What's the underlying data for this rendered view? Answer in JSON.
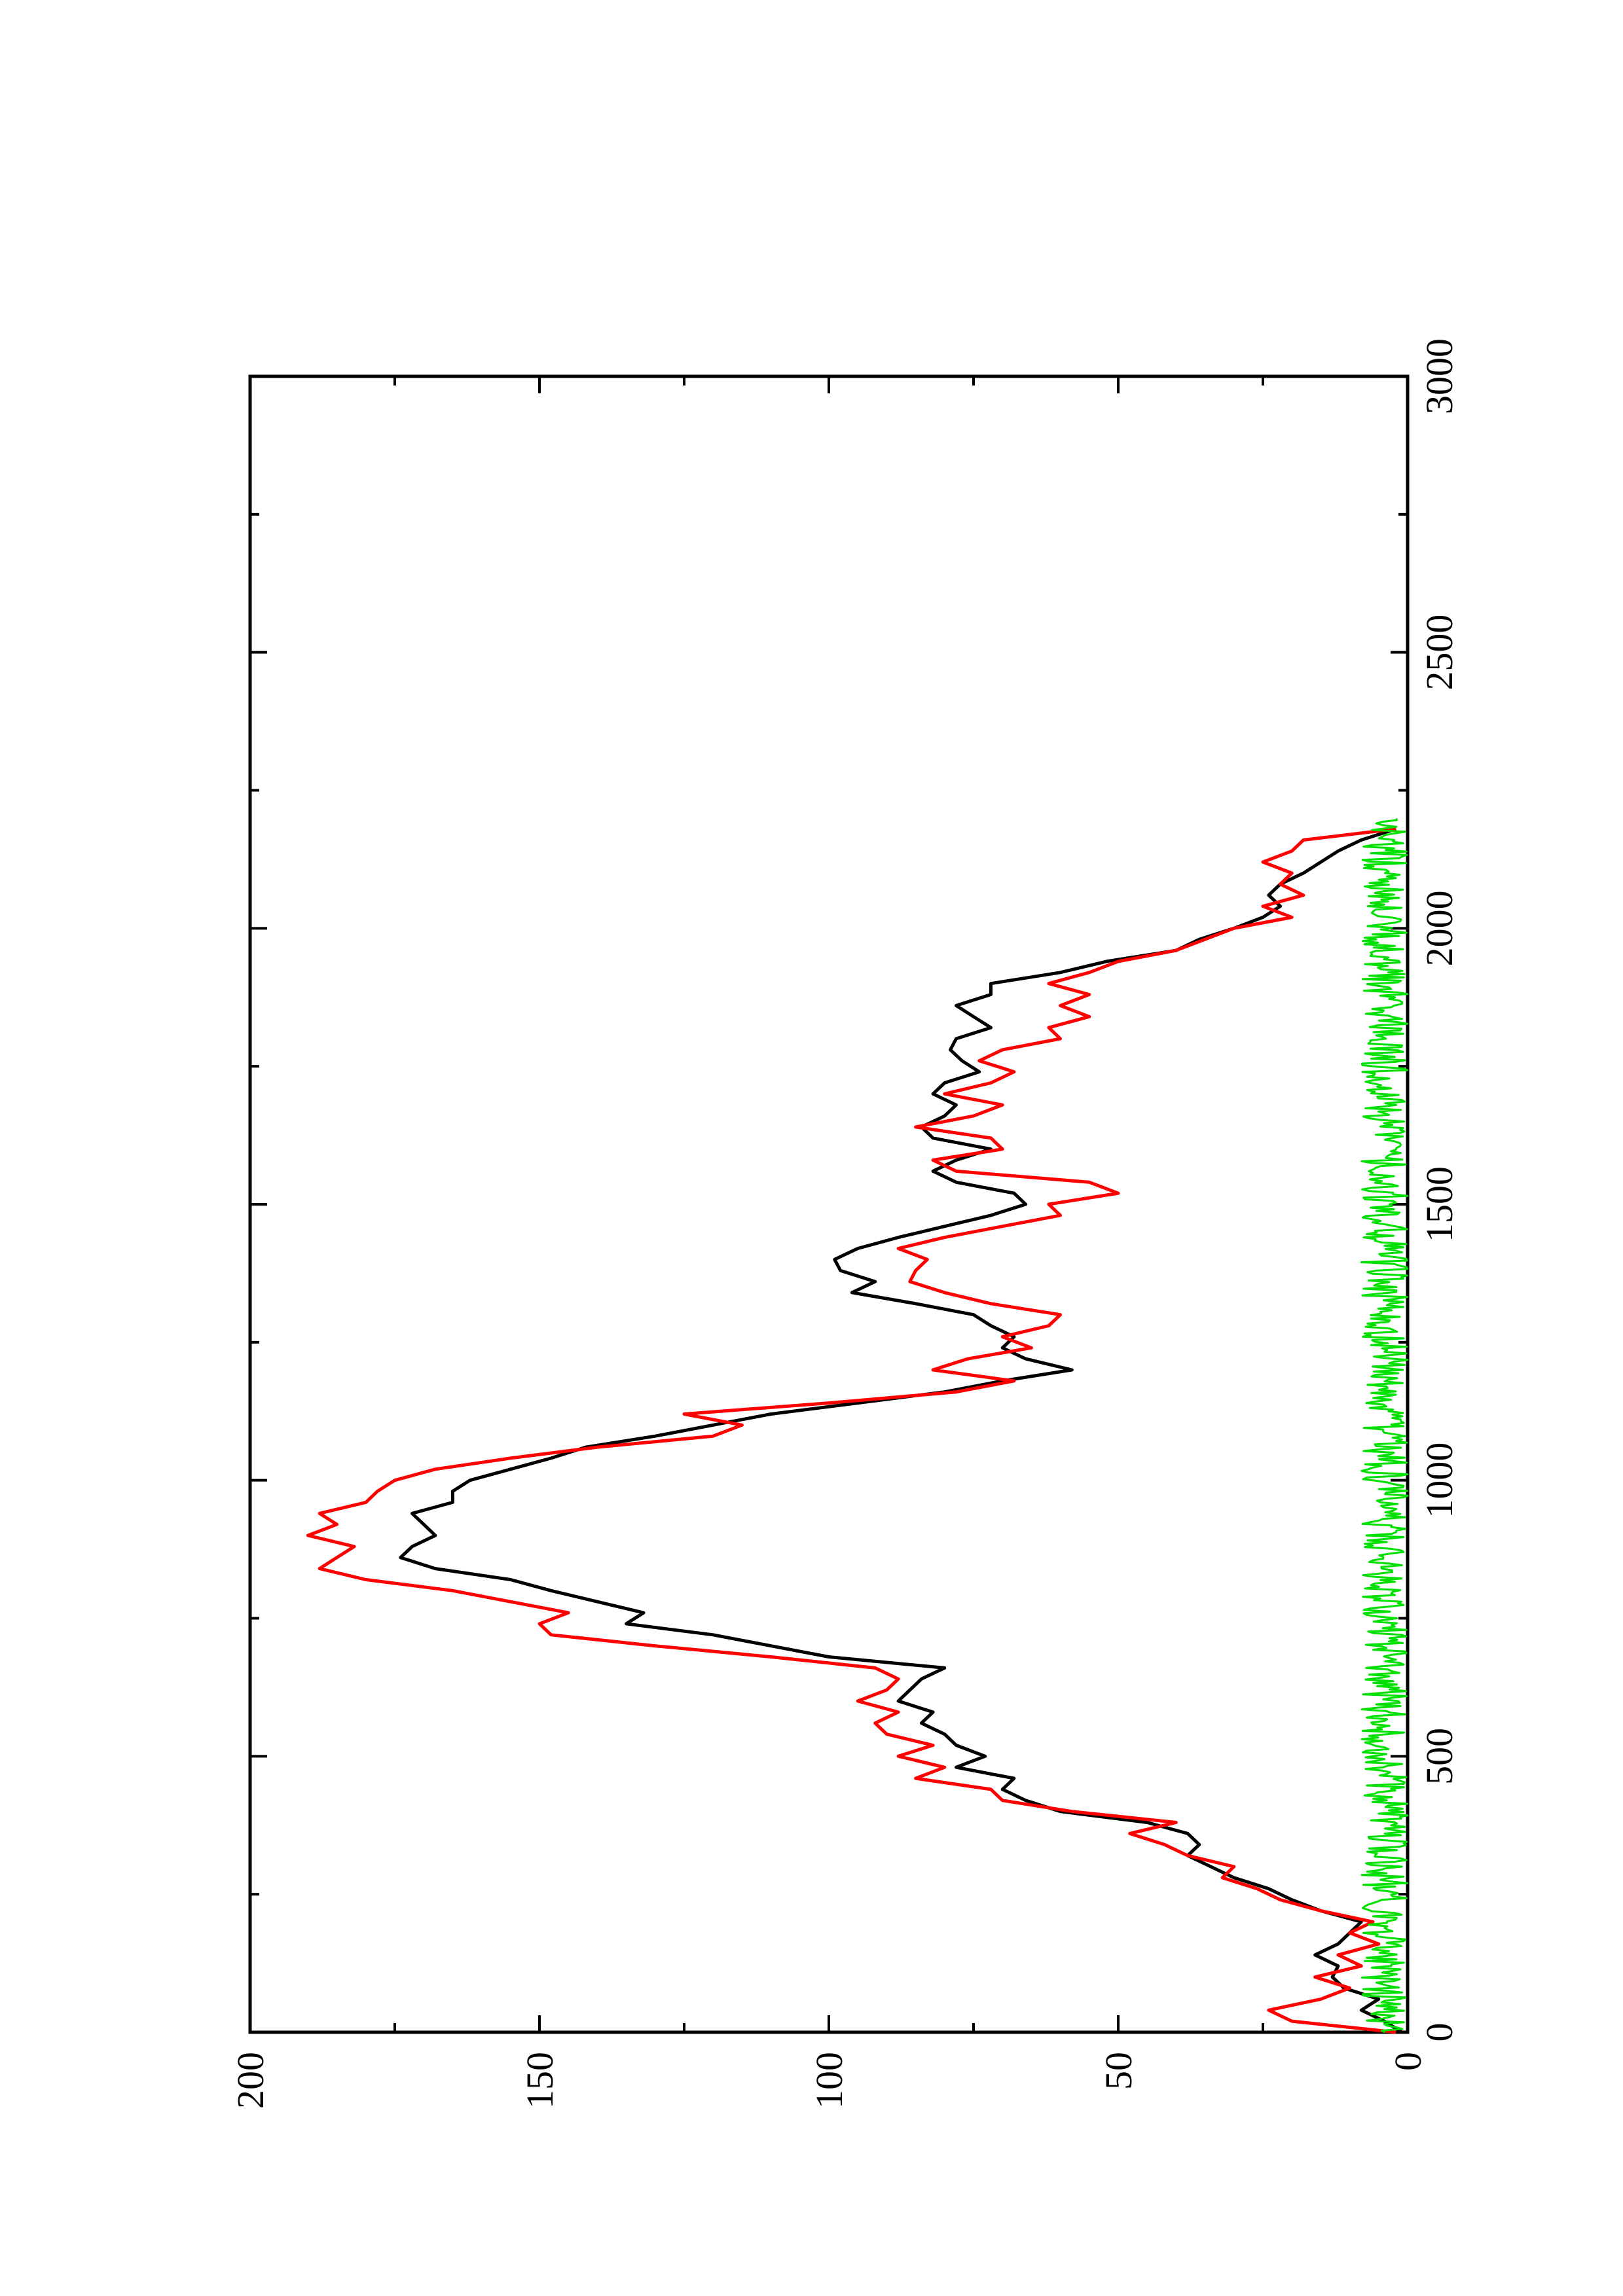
{
  "chart_data": {
    "type": "line",
    "orientation": "rotated-90-ccw",
    "title": "",
    "xlabel": "",
    "ylabel": "",
    "xlim": [
      0,
      3000
    ],
    "ylim": [
      0,
      200
    ],
    "x_ticks": [
      0,
      500,
      1000,
      1500,
      2000,
      2500,
      3000
    ],
    "y_ticks": [
      0,
      50,
      100,
      150,
      200
    ],
    "x_minor_step": 250,
    "y_minor_step": 25,
    "grid": false,
    "legend": "none",
    "series": [
      {
        "color": "#000000",
        "x": [
          0,
          20,
          40,
          60,
          80,
          100,
          120,
          140,
          160,
          180,
          200,
          220,
          240,
          260,
          280,
          300,
          320,
          340,
          360,
          380,
          400,
          420,
          440,
          460,
          480,
          500,
          520,
          540,
          560,
          580,
          600,
          620,
          640,
          660,
          680,
          700,
          720,
          740,
          760,
          780,
          800,
          820,
          840,
          860,
          880,
          900,
          920,
          940,
          960,
          980,
          1000,
          1020,
          1040,
          1060,
          1080,
          1100,
          1120,
          1140,
          1160,
          1180,
          1200,
          1220,
          1240,
          1260,
          1280,
          1300,
          1320,
          1340,
          1360,
          1380,
          1400,
          1420,
          1440,
          1460,
          1480,
          1500,
          1520,
          1540,
          1560,
          1580,
          1600,
          1620,
          1640,
          1660,
          1680,
          1700,
          1720,
          1740,
          1760,
          1780,
          1800,
          1820,
          1840,
          1860,
          1880,
          1900,
          1920,
          1940,
          1960,
          1980,
          2000,
          2020,
          2040,
          2060,
          2080,
          2100,
          2120,
          2140,
          2160,
          2180
        ],
        "values": [
          1,
          4,
          8,
          5,
          11,
          13,
          12,
          16,
          12,
          10,
          8,
          15,
          20,
          24,
          30,
          34,
          38,
          36,
          38,
          45,
          60,
          66,
          70,
          68,
          78,
          73,
          78,
          80,
          84,
          82,
          88,
          86,
          84,
          80,
          100,
          110,
          120,
          135,
          132,
          140,
          148,
          155,
          168,
          174,
          172,
          168,
          170,
          172,
          165,
          165,
          162,
          155,
          148,
          142,
          130,
          120,
          110,
          95,
          80,
          70,
          58,
          66,
          70,
          68,
          72,
          75,
          85,
          96,
          92,
          98,
          99,
          95,
          88,
          80,
          72,
          66,
          68,
          78,
          82,
          78,
          72,
          82,
          84,
          80,
          78,
          82,
          80,
          74,
          77,
          79,
          78,
          72,
          75,
          78,
          72,
          72,
          60,
          52,
          40,
          36,
          30,
          25,
          22,
          24,
          22,
          18,
          15,
          12,
          8,
          2
        ]
      },
      {
        "color": "#ff0000",
        "x": [
          0,
          20,
          40,
          60,
          80,
          100,
          120,
          140,
          160,
          180,
          200,
          220,
          240,
          260,
          280,
          300,
          320,
          340,
          360,
          380,
          400,
          420,
          440,
          460,
          480,
          500,
          520,
          540,
          560,
          580,
          600,
          620,
          640,
          660,
          680,
          700,
          720,
          740,
          760,
          780,
          800,
          820,
          840,
          860,
          880,
          900,
          920,
          940,
          960,
          980,
          1000,
          1020,
          1040,
          1060,
          1080,
          1100,
          1120,
          1140,
          1160,
          1180,
          1200,
          1220,
          1240,
          1260,
          1280,
          1300,
          1320,
          1340,
          1360,
          1380,
          1400,
          1420,
          1440,
          1460,
          1480,
          1500,
          1520,
          1540,
          1560,
          1580,
          1600,
          1620,
          1640,
          1660,
          1680,
          1700,
          1720,
          1740,
          1760,
          1780,
          1800,
          1820,
          1840,
          1860,
          1880,
          1900,
          1920,
          1940,
          1960,
          1980,
          2000,
          2020,
          2040,
          2060,
          2080,
          2100,
          2120,
          2140,
          2160,
          2180
        ],
        "values": [
          2,
          20,
          24,
          15,
          10,
          16,
          8,
          12,
          5,
          10,
          6,
          15,
          22,
          26,
          32,
          30,
          38,
          42,
          48,
          40,
          58,
          70,
          72,
          85,
          80,
          88,
          82,
          90,
          92,
          88,
          95,
          90,
          88,
          92,
          110,
          130,
          148,
          150,
          145,
          155,
          165,
          180,
          188,
          185,
          182,
          190,
          185,
          188,
          180,
          178,
          175,
          168,
          155,
          140,
          120,
          115,
          125,
          100,
          78,
          68,
          82,
          76,
          65,
          70,
          62,
          60,
          72,
          80,
          86,
          85,
          83,
          88,
          80,
          70,
          60,
          62,
          50,
          55,
          78,
          82,
          70,
          72,
          85,
          75,
          70,
          80,
          72,
          68,
          74,
          70,
          60,
          62,
          55,
          60,
          55,
          62,
          55,
          50,
          40,
          35,
          30,
          20,
          25,
          18,
          22,
          20,
          25,
          20,
          18,
          2
        ]
      },
      {
        "color": "#00e000",
        "x_start": 0,
        "x_end": 2200,
        "value_range": [
          0,
          8
        ],
        "note_style": "noise"
      }
    ]
  }
}
